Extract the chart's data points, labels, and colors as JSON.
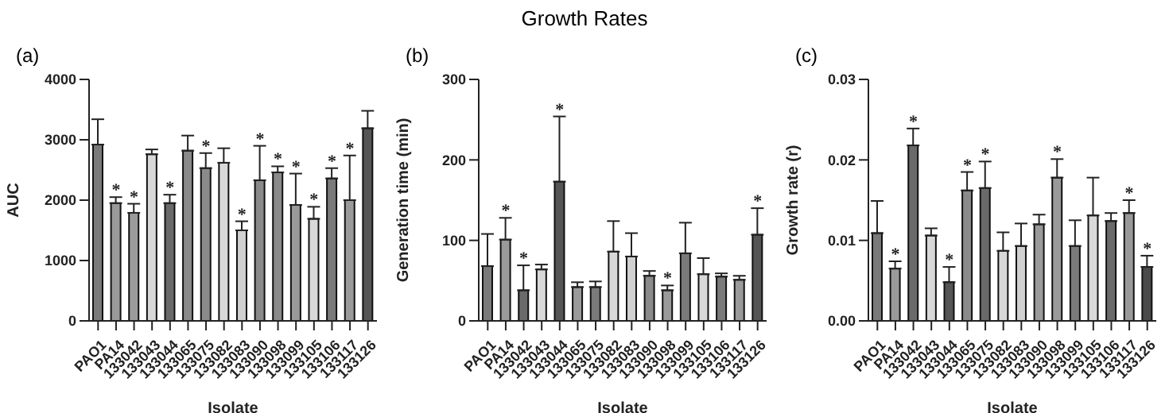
{
  "chart_data": [
    {
      "type": "other",
      "title": "Growth Rates"
    },
    {
      "type": "bar",
      "title": "(a)",
      "xlabel": "Isolate",
      "ylabel": "AUC",
      "categories": [
        "PAO1",
        "PA14",
        "133042",
        "133043",
        "133044",
        "133065",
        "133075",
        "133082",
        "133083",
        "133090",
        "133098",
        "133099",
        "133105",
        "133106",
        "133117",
        "133126"
      ],
      "values": [
        2920,
        1950,
        1790,
        2760,
        1950,
        2820,
        2530,
        2620,
        1500,
        2330,
        2460,
        1920,
        1690,
        2360,
        2000,
        3190
      ],
      "errors": [
        [
          2920,
          3340
        ],
        [
          1950,
          2050
        ],
        [
          1790,
          1940
        ],
        [
          2760,
          2840
        ],
        [
          1950,
          2090
        ],
        [
          2820,
          3070
        ],
        [
          2530,
          2780
        ],
        [
          2620,
          2860
        ],
        [
          1500,
          1650
        ],
        [
          2330,
          2900
        ],
        [
          2460,
          2560
        ],
        [
          1920,
          2440
        ],
        [
          1690,
          1890
        ],
        [
          2360,
          2530
        ],
        [
          2000,
          2740
        ],
        [
          3190,
          3480
        ]
      ],
      "colors": [
        "#7a7a7a",
        "#9a9a9a",
        "#9a9a9a",
        "#d8d8d8",
        "#6a6a6a",
        "#8a8a8a",
        "#8a8a8a",
        "#d8d8d8",
        "#d0d0d0",
        "#8a8a8a",
        "#8a8a8a",
        "#9a9a9a",
        "#d8d8d8",
        "#7a7a7a",
        "#9a9a9a",
        "#555555"
      ],
      "ylim": [
        0,
        4000
      ],
      "yticks": [
        0,
        1000,
        2000,
        3000,
        4000
      ],
      "grid": false,
      "legend": false,
      "annotations": [
        {
          "text": "*",
          "x": "PA14",
          "y": 2050
        },
        {
          "text": "*",
          "x": "133042",
          "y": 1940
        },
        {
          "text": "*",
          "x": "133044",
          "y": 2090
        },
        {
          "text": "*",
          "x": "133075",
          "y": 2780
        },
        {
          "text": "*",
          "x": "133083",
          "y": 1650
        },
        {
          "text": "*",
          "x": "133090",
          "y": 2900
        },
        {
          "text": "*",
          "x": "133098",
          "y": 2560
        },
        {
          "text": "*",
          "x": "133099",
          "y": 2440
        },
        {
          "text": "*",
          "x": "133105",
          "y": 1890
        },
        {
          "text": "*",
          "x": "133106",
          "y": 2530
        },
        {
          "text": "*",
          "x": "133117",
          "y": 2740
        }
      ]
    },
    {
      "type": "bar",
      "title": "(b)",
      "xlabel": "Isolate",
      "ylabel": "Generation time (min)",
      "categories": [
        "PAO1",
        "PA14",
        "133042",
        "133043",
        "133044",
        "133065",
        "133075",
        "133082",
        "133083",
        "133090",
        "133098",
        "133099",
        "133105",
        "133106",
        "133117",
        "133126"
      ],
      "values": [
        68,
        101,
        38,
        64,
        173,
        42,
        42,
        86,
        80,
        56,
        38,
        84,
        58,
        55,
        51,
        107
      ],
      "errors": [
        [
          68,
          108
        ],
        [
          101,
          128
        ],
        [
          38,
          69
        ],
        [
          64,
          70
        ],
        [
          173,
          254
        ],
        [
          42,
          48
        ],
        [
          42,
          49
        ],
        [
          86,
          124
        ],
        [
          80,
          109
        ],
        [
          56,
          62
        ],
        [
          38,
          44
        ],
        [
          84,
          122
        ],
        [
          58,
          78
        ],
        [
          55,
          59
        ],
        [
          51,
          56
        ],
        [
          107,
          140
        ]
      ],
      "colors": [
        "#7a7a7a",
        "#9a9a9a",
        "#6a6a6a",
        "#d8d8d8",
        "#555555",
        "#9a9a9a",
        "#7a7a7a",
        "#d8d8d8",
        "#d0d0d0",
        "#8a8a8a",
        "#9a9a9a",
        "#7a7a7a",
        "#d8d8d8",
        "#7a7a7a",
        "#9a9a9a",
        "#555555"
      ],
      "ylim": [
        0,
        300
      ],
      "yticks": [
        0,
        100,
        200,
        300
      ],
      "grid": false,
      "legend": false,
      "annotations": [
        {
          "text": "*",
          "x": "PA14",
          "y": 128
        },
        {
          "text": "*",
          "x": "133042",
          "y": 69
        },
        {
          "text": "*",
          "x": "133044",
          "y": 254
        },
        {
          "text": "*",
          "x": "133098",
          "y": 44
        },
        {
          "text": "*",
          "x": "133126",
          "y": 140
        }
      ]
    },
    {
      "type": "bar",
      "title": "(c)",
      "xlabel": "Isolate",
      "ylabel": "Growth rate (r)",
      "categories": [
        "PAO1",
        "PA14",
        "133042",
        "133043",
        "133044",
        "133065",
        "133075",
        "133082",
        "133083",
        "133090",
        "133098",
        "133099",
        "133105",
        "133106",
        "133117",
        "133126"
      ],
      "values": [
        0.0109,
        0.0065,
        0.0218,
        0.0106,
        0.0048,
        0.0162,
        0.0165,
        0.0087,
        0.0093,
        0.012,
        0.0178,
        0.0093,
        0.0131,
        0.0124,
        0.0134,
        0.0067
      ],
      "errors": [
        [
          0.0109,
          0.0149
        ],
        [
          0.0065,
          0.0074
        ],
        [
          0.0218,
          0.0239
        ],
        [
          0.0106,
          0.0115
        ],
        [
          0.0048,
          0.0067
        ],
        [
          0.0162,
          0.0185
        ],
        [
          0.0165,
          0.0198
        ],
        [
          0.0087,
          0.011
        ],
        [
          0.0093,
          0.0121
        ],
        [
          0.012,
          0.0132
        ],
        [
          0.0178,
          0.0201
        ],
        [
          0.0093,
          0.0125
        ],
        [
          0.0131,
          0.0178
        ],
        [
          0.0124,
          0.0134
        ],
        [
          0.0134,
          0.015
        ],
        [
          0.0067,
          0.0081
        ]
      ],
      "colors": [
        "#7a7a7a",
        "#9a9a9a",
        "#6a6a6a",
        "#d8d8d8",
        "#555555",
        "#8a8a8a",
        "#6a6a6a",
        "#d8d8d8",
        "#d0d0d0",
        "#9a9a9a",
        "#9a9a9a",
        "#7a7a7a",
        "#d8d8d8",
        "#6a6a6a",
        "#9a9a9a",
        "#4a4a4a"
      ],
      "ylim": [
        0,
        0.03
      ],
      "yticks": [
        {
          "value": 0,
          "label": "0.00"
        },
        0.01,
        0.02,
        0.03
      ],
      "grid": false,
      "legend": false,
      "annotations": [
        {
          "text": "*",
          "x": "PA14",
          "y": 0.0074
        },
        {
          "text": "*",
          "x": "133042",
          "y": 0.0239
        },
        {
          "text": "*",
          "x": "133044",
          "y": 0.0067
        },
        {
          "text": "*",
          "x": "133065",
          "y": 0.0185
        },
        {
          "text": "*",
          "x": "133075",
          "y": 0.0198
        },
        {
          "text": "*",
          "x": "133098",
          "y": 0.0201
        },
        {
          "text": "*",
          "x": "133117",
          "y": 0.015
        },
        {
          "text": "*",
          "x": "133126",
          "y": 0.0081
        }
      ]
    }
  ]
}
